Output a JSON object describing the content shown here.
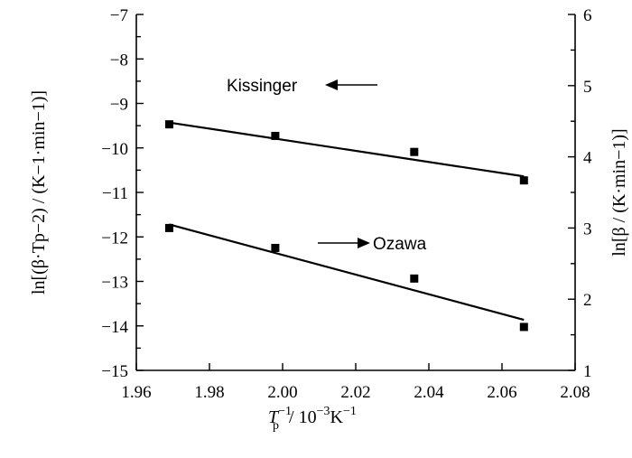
{
  "chart_data": {
    "type": "scatter",
    "x_axis": {
      "label_main": "T",
      "label_sub": "p",
      "label_sup": "−1",
      "label_rest": " / 10",
      "label_rest_sup": "−3",
      "label_unit": "K",
      "label_unit_sup": "−1",
      "range": [
        1.96,
        2.08
      ],
      "ticks": [
        "1.96",
        "1.98",
        "2.00",
        "2.02",
        "2.04",
        "2.06",
        "2.08"
      ]
    },
    "y_left_axis": {
      "label": "ln[(β·Tp−2) / (K−1·min−1)]",
      "range": [
        -15,
        -7
      ],
      "ticks": [
        "−15",
        "−14",
        "−13",
        "−12",
        "−11",
        "−10",
        "−9",
        "−8",
        "−7"
      ]
    },
    "y_right_axis": {
      "label": "ln[β / (K·min−1)]",
      "range": [
        1,
        6
      ],
      "ticks": [
        "1",
        "2",
        "3",
        "4",
        "5",
        "6"
      ]
    },
    "series": [
      {
        "name": "Kissinger",
        "axis": "left",
        "points": [
          {
            "x": 1.969,
            "y": -9.47
          },
          {
            "x": 1.998,
            "y": -9.73
          },
          {
            "x": 2.036,
            "y": -10.09
          },
          {
            "x": 2.066,
            "y": -10.73
          }
        ],
        "fit": {
          "x": [
            1.969,
            2.066
          ],
          "y": [
            -9.43,
            -10.64
          ]
        },
        "annotation_arrow": "left"
      },
      {
        "name": "Ozawa",
        "axis": "right",
        "points": [
          {
            "x": 1.969,
            "y": 3.0
          },
          {
            "x": 1.998,
            "y": 2.72
          },
          {
            "x": 2.036,
            "y": 2.29
          },
          {
            "x": 2.066,
            "y": 1.61
          }
        ],
        "fit": {
          "x": [
            1.969,
            2.066
          ],
          "y": [
            3.05,
            1.71
          ]
        },
        "annotation_arrow": "right"
      }
    ],
    "grid": false
  }
}
